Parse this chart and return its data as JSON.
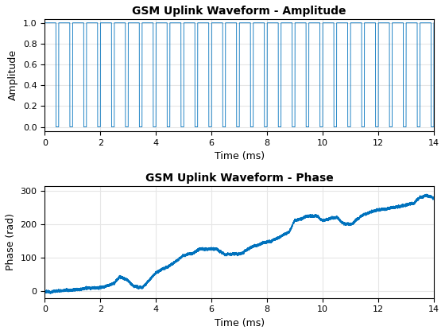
{
  "title_amplitude": "GSM Uplink Waveform - Amplitude",
  "title_phase": "GSM Uplink Waveform - Phase",
  "xlabel": "Time (ms)",
  "ylabel_amplitude": "Amplitude",
  "ylabel_phase": "Phase (rad)",
  "xlim": [
    0,
    14
  ],
  "line_color": "#0072BD",
  "line_width": 0.6,
  "background_color": "#FFFFFF",
  "grid_color": "#E6E6E6",
  "yticks_amplitude": [
    0,
    0.2,
    0.4,
    0.6,
    0.8,
    1.0
  ],
  "yticks_phase": [
    0,
    100,
    200,
    300
  ],
  "xticks": [
    0,
    2,
    4,
    6,
    8,
    10,
    12,
    14
  ],
  "title_fontsize": 10,
  "label_fontsize": 9,
  "tick_fontsize": 8
}
